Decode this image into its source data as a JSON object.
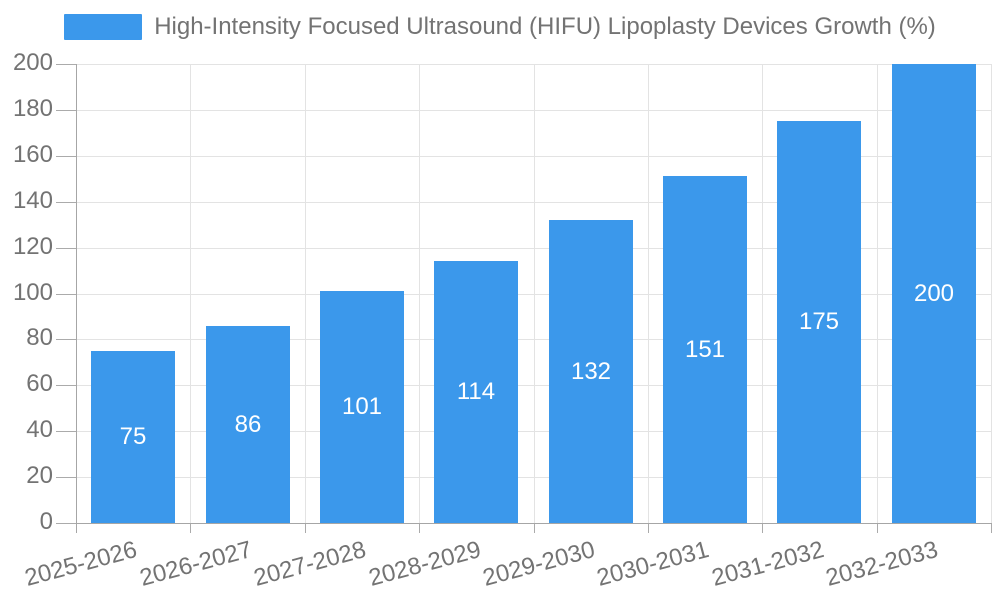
{
  "chart_data": {
    "type": "bar",
    "title": "High-Intensity Focused Ultrasound (HIFU) Lipoplasty Devices Growth (%)",
    "categories": [
      "2025-2026",
      "2026-2027",
      "2027-2028",
      "2028-2029",
      "2029-2030",
      "2030-2031",
      "2031-2032",
      "2032-2033"
    ],
    "values": [
      75,
      86,
      101,
      114,
      132,
      151,
      175,
      200
    ],
    "value_labels": [
      "75",
      "86",
      "101",
      "114",
      "132",
      "151",
      "175",
      "200"
    ],
    "xlabel": "",
    "ylabel": "",
    "ylim": [
      0,
      200
    ],
    "ytick_step": 20,
    "yticks": [
      0,
      20,
      40,
      60,
      80,
      100,
      120,
      140,
      160,
      180,
      200
    ],
    "grid": true,
    "legend_position": "top-center",
    "x_label_rotation_deg": -15,
    "bar_width_ratio": 0.735,
    "colors": {
      "bar": "#3B98EB",
      "value_label": "#FFFFFF",
      "axis": "#A6A6A6",
      "tick": "#ABABAB",
      "grid": "#E3E3E3",
      "text": "#737373",
      "background": "#FFFFFF"
    }
  },
  "legend": {
    "label": "High-Intensity Focused Ultrasound (HIFU) Lipoplasty Devices Growth (%)"
  }
}
